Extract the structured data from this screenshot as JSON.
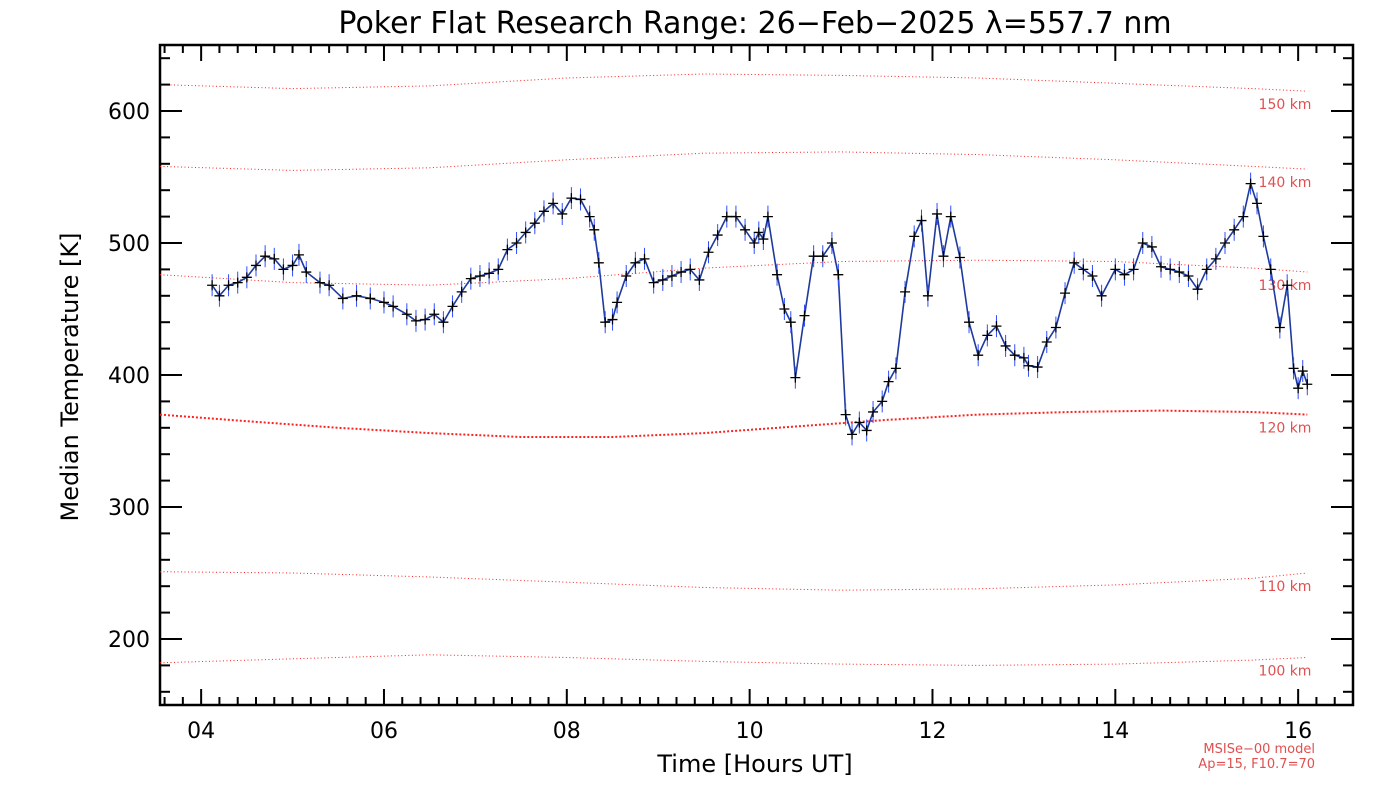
{
  "chart_data": {
    "type": "line",
    "title": "Poker Flat Research Range: 26−Feb−2025 λ=557.7 nm",
    "xlabel": "Time [Hours UT]",
    "ylabel": "Median Temperature [K]",
    "xlim": [
      3.55,
      16.6
    ],
    "ylim": [
      150,
      650
    ],
    "x_ticks": [
      4,
      6,
      8,
      10,
      12,
      14,
      16
    ],
    "x_tick_labels": [
      "04",
      "06",
      "08",
      "10",
      "12",
      "14",
      "16"
    ],
    "y_ticks": [
      200,
      300,
      400,
      500,
      600
    ],
    "y_tick_labels": [
      "200",
      "300",
      "400",
      "500",
      "600"
    ],
    "grid": false,
    "series": [
      {
        "color": "#1f3a9e",
        "marker": "+",
        "error_bar_color": "#2f4fff",
        "x": [
          4.12,
          4.2,
          4.3,
          4.4,
          4.5,
          4.6,
          4.7,
          4.8,
          4.9,
          5.0,
          5.07,
          5.15,
          5.3,
          5.4,
          5.55,
          5.7,
          5.85,
          6.0,
          6.1,
          6.25,
          6.35,
          6.45,
          6.55,
          6.65,
          6.75,
          6.85,
          6.95,
          7.05,
          7.15,
          7.25,
          7.35,
          7.45,
          7.55,
          7.65,
          7.75,
          7.85,
          7.95,
          8.05,
          8.15,
          8.25,
          8.3,
          8.35,
          8.42,
          8.5,
          8.55,
          8.65,
          8.75,
          8.85,
          8.95,
          9.05,
          9.15,
          9.25,
          9.35,
          9.45,
          9.55,
          9.65,
          9.75,
          9.85,
          9.95,
          10.05,
          10.1,
          10.15,
          10.2,
          10.3,
          10.38,
          10.45,
          10.5,
          10.6,
          10.7,
          10.8,
          10.9,
          10.97,
          11.05,
          11.12,
          11.2,
          11.28,
          11.35,
          11.45,
          11.52,
          11.6,
          11.7,
          11.8,
          11.88,
          11.95,
          12.05,
          12.12,
          12.2,
          12.3,
          12.4,
          12.5,
          12.6,
          12.7,
          12.8,
          12.9,
          13.0,
          13.05,
          13.15,
          13.25,
          13.35,
          13.45,
          13.55,
          13.65,
          13.75,
          13.85,
          14.0,
          14.1,
          14.2,
          14.3,
          14.4,
          14.5,
          14.6,
          14.7,
          14.8,
          14.9,
          15.0,
          15.1,
          15.2,
          15.3,
          15.4,
          15.48,
          15.55,
          15.62,
          15.7,
          15.8,
          15.88,
          15.95,
          16.0,
          16.05,
          16.1
        ],
        "values": [
          468,
          460,
          468,
          470,
          474,
          483,
          490,
          488,
          480,
          483,
          491,
          478,
          470,
          468,
          458,
          460,
          458,
          455,
          452,
          446,
          441,
          442,
          446,
          440,
          452,
          463,
          473,
          475,
          477,
          480,
          495,
          500,
          508,
          515,
          524,
          530,
          522,
          534,
          533,
          520,
          510,
          485,
          440,
          442,
          455,
          475,
          485,
          488,
          470,
          472,
          475,
          478,
          480,
          472,
          493,
          506,
          520,
          520,
          510,
          500,
          508,
          503,
          520,
          476,
          450,
          440,
          398,
          445,
          490,
          490,
          500,
          476,
          370,
          355,
          364,
          358,
          372,
          380,
          395,
          405,
          463,
          505,
          517,
          460,
          522,
          490,
          520,
          489,
          440,
          415,
          430,
          437,
          422,
          415,
          413,
          407,
          406,
          425,
          436,
          462,
          485,
          480,
          475,
          460,
          480,
          476,
          480,
          500,
          497,
          482,
          480,
          478,
          475,
          465,
          480,
          488,
          500,
          510,
          520,
          545,
          530,
          505,
          480,
          436,
          468,
          405,
          390,
          403,
          393
        ]
      }
    ],
    "model": {
      "color": "#ff2020",
      "label_line1": "MSISe−00 model",
      "label_line2": "Ap=15, F10.7=70",
      "curves": [
        {
          "label": "100 km",
          "x": [
            3.55,
            5.0,
            6.5,
            8.0,
            9.5,
            11.0,
            12.5,
            14.0,
            15.5,
            16.1
          ],
          "values": [
            182,
            185,
            188,
            186,
            183,
            181,
            180,
            181,
            184,
            186
          ]
        },
        {
          "label": "110 km",
          "x": [
            3.55,
            5.0,
            6.5,
            8.0,
            9.5,
            11.0,
            12.5,
            14.0,
            15.5,
            16.1
          ],
          "values": [
            251,
            250,
            247,
            243,
            239,
            237,
            238,
            241,
            246,
            250
          ]
        },
        {
          "label": "120 km",
          "x": [
            3.55,
            4.5,
            5.5,
            6.5,
            7.5,
            8.5,
            9.5,
            10.5,
            11.5,
            12.5,
            13.5,
            14.5,
            15.5,
            16.1
          ],
          "values": [
            370,
            365,
            360,
            356,
            353,
            353,
            356,
            361,
            366,
            370,
            372,
            373,
            372,
            370
          ]
        },
        {
          "label": "130 km",
          "x": [
            3.55,
            5.0,
            6.5,
            8.0,
            9.5,
            11.0,
            12.5,
            14.0,
            15.5,
            16.1
          ],
          "values": [
            476,
            470,
            468,
            473,
            481,
            486,
            487,
            486,
            481,
            478
          ]
        },
        {
          "label": "140 km",
          "x": [
            3.55,
            5.0,
            6.5,
            8.0,
            9.5,
            11.0,
            12.5,
            14.0,
            15.5,
            16.1
          ],
          "values": [
            558,
            555,
            557,
            563,
            568,
            569,
            567,
            563,
            558,
            556
          ]
        },
        {
          "label": "150 km",
          "x": [
            3.55,
            5.0,
            6.5,
            8.0,
            9.5,
            11.0,
            12.5,
            14.0,
            15.5,
            16.1
          ],
          "values": [
            620,
            617,
            619,
            625,
            628,
            627,
            625,
            621,
            617,
            615
          ]
        }
      ]
    }
  }
}
